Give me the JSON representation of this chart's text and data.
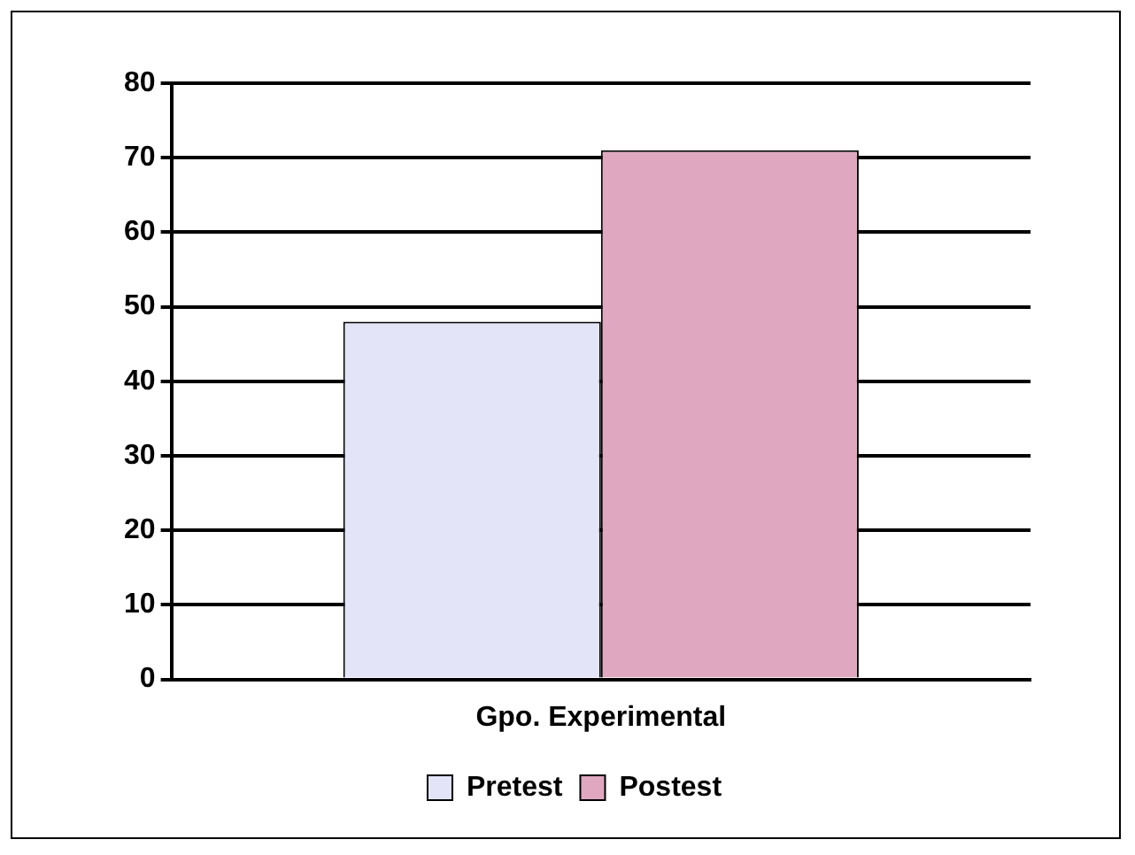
{
  "chart_data": {
    "type": "bar",
    "categories": [
      "Gpo. Experimental"
    ],
    "series": [
      {
        "name": "Pretest",
        "color": "#e4e4f8",
        "values": [
          48
        ]
      },
      {
        "name": "Postest",
        "color": "#e0a8c0",
        "values": [
          71
        ]
      }
    ],
    "ylim": [
      0,
      80
    ],
    "yticks": [
      0,
      10,
      20,
      30,
      40,
      50,
      60,
      70,
      80
    ],
    "grid": "y",
    "legend": "bottom"
  }
}
